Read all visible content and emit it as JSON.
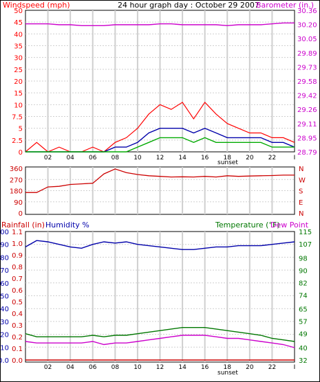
{
  "colors": {
    "wind": "#ff0000",
    "wind_avg": "#0000aa",
    "wind_low": "#00aa00",
    "barometer": "#cc00cc",
    "direction": "#cc0000",
    "humidity": "#0000aa",
    "temperature": "#007700",
    "dewpoint": "#cc00cc",
    "rainfall": "#cc0000",
    "grid": "#cfcfcf",
    "text_black": "#000000"
  },
  "panel1": {
    "title": "24 hour graph day : October 29 2007",
    "left_label": "Windspeed (mph)",
    "right_label": "Barometer (in.)",
    "sunset_label": "sunset"
  },
  "panel2": {
    "dir_letters": [
      "N",
      "W",
      "S",
      "E",
      "N"
    ]
  },
  "panel3": {
    "rain_label": "Rainfall (in)",
    "humidity_label": "Humidity %",
    "temperature_label": "Temperature (°F)",
    "dewpoint_label": "Dew Point",
    "sunset_label": "sunset"
  },
  "chart_data": [
    {
      "type": "line",
      "title": "24 hour graph day : October 29 2007",
      "x_ticks": [
        "02",
        "04",
        "06",
        "08",
        "10",
        "12",
        "14",
        "16",
        "18",
        "20",
        "22",
        "I"
      ],
      "y_left_label": "Windspeed (mph)",
      "y_left_ticks": [
        "0",
        "2.5",
        "5",
        "7.5",
        "10",
        "15",
        "20",
        "25",
        "30",
        "35",
        "40",
        "45",
        "50"
      ],
      "y_left_lim": [
        0,
        50
      ],
      "y_right_label": "Barometer (in.)",
      "y_right_ticks": [
        "28.79",
        "28.95",
        "29.11",
        "29.26",
        "29.42",
        "29.58",
        "29.73",
        "29.89",
        "30.05",
        "30.20",
        "30.36"
      ],
      "y_right_lim": [
        28.79,
        30.36
      ],
      "x_hours": [
        0,
        1,
        2,
        3,
        4,
        5,
        6,
        7,
        8,
        9,
        10,
        11,
        12,
        13,
        14,
        15,
        16,
        17,
        18,
        19,
        20,
        21,
        22,
        23,
        24
      ],
      "series": [
        {
          "name": "Windspeed (mph)",
          "axis": "left",
          "values": [
            0,
            2,
            0,
            1,
            0,
            0,
            1,
            0,
            2,
            3,
            5,
            8,
            10,
            9,
            11,
            7,
            11,
            8,
            6,
            5,
            4,
            4,
            3,
            3,
            2
          ]
        },
        {
          "name": "",
          "axis": "left",
          "values": [
            0,
            0,
            0,
            0,
            0,
            0,
            0,
            0,
            1,
            1,
            2,
            4,
            5,
            5,
            5,
            4,
            5,
            4,
            3,
            3,
            3,
            3,
            2,
            2,
            1
          ]
        },
        {
          "name": "",
          "axis": "left",
          "values": [
            0,
            0,
            0,
            0,
            0,
            0,
            0,
            0,
            0,
            0,
            1,
            2,
            3,
            3,
            3,
            2,
            3,
            2,
            2,
            2,
            2,
            2,
            1,
            1,
            1
          ]
        },
        {
          "name": "Barometer (in.)",
          "axis": "right",
          "values": [
            30.21,
            30.21,
            30.21,
            30.2,
            30.2,
            30.19,
            30.19,
            30.19,
            30.2,
            30.2,
            30.2,
            30.2,
            30.21,
            30.21,
            30.2,
            30.2,
            30.2,
            30.2,
            30.19,
            30.2,
            30.2,
            30.2,
            30.21,
            30.22,
            30.22
          ]
        }
      ]
    },
    {
      "type": "line",
      "y_ticks": [
        "0",
        "90",
        "180",
        "270",
        "360"
      ],
      "y_lim": [
        0,
        360
      ],
      "y_right_labels": [
        "N",
        "W",
        "S",
        "E",
        "N"
      ],
      "x_hours": [
        0,
        1,
        2,
        3,
        4,
        5,
        6,
        7,
        8,
        9,
        10,
        11,
        12,
        13,
        14,
        15,
        16,
        17,
        18,
        19,
        20,
        21,
        22,
        23,
        24
      ],
      "series": [
        {
          "name": "Wind direction",
          "values": [
            165,
            165,
            210,
            215,
            230,
            235,
            240,
            315,
            355,
            325,
            310,
            300,
            295,
            290,
            292,
            290,
            295,
            290,
            300,
            295,
            298,
            300,
            302,
            305,
            305
          ]
        }
      ]
    },
    {
      "type": "line",
      "x_ticks": [
        "02",
        "04",
        "06",
        "08",
        "10",
        "12",
        "14",
        "16",
        "18",
        "20",
        "22",
        "I"
      ],
      "y_left_ticks": [
        "0.0",
        "10",
        "20",
        "30",
        "40",
        "50",
        "60",
        "70",
        "80",
        "90",
        "100"
      ],
      "y_left_lim": [
        0,
        100
      ],
      "y_rain_ticks": [
        "0.0",
        "0.1",
        "0.2",
        "0.3",
        "0.4",
        "0.5",
        "0.6",
        "0.7",
        "0.8",
        "0.9",
        "1.0",
        "1.1"
      ],
      "y_right_ticks": [
        "32",
        "40",
        "49",
        "57",
        "65",
        "74",
        "82",
        "90",
        "98",
        "107",
        "115"
      ],
      "y_right_lim": [
        32,
        115
      ],
      "x_hours": [
        0,
        1,
        2,
        3,
        4,
        5,
        6,
        7,
        8,
        9,
        10,
        11,
        12,
        13,
        14,
        15,
        16,
        17,
        18,
        19,
        20,
        21,
        22,
        23,
        24
      ],
      "series": [
        {
          "name": "Humidity %",
          "axis": "humidity",
          "values": [
            88,
            93,
            92,
            90,
            88,
            87,
            90,
            92,
            91,
            92,
            90,
            89,
            88,
            87,
            86,
            86,
            87,
            88,
            88,
            89,
            89,
            89,
            90,
            91,
            92
          ]
        },
        {
          "name": "Temperature (°F)",
          "axis": "temperature",
          "values": [
            49,
            47,
            47,
            47,
            47,
            47,
            48,
            47,
            48,
            48,
            49,
            50,
            51,
            52,
            53,
            53,
            53,
            52,
            51,
            50,
            49,
            48,
            46,
            45,
            44
          ]
        },
        {
          "name": "Dew Point",
          "axis": "temperature",
          "values": [
            44,
            43,
            43,
            43,
            43,
            43,
            44,
            42,
            43,
            43,
            44,
            45,
            46,
            47,
            48,
            48,
            48,
            47,
            46,
            46,
            45,
            44,
            43,
            42,
            40
          ]
        },
        {
          "name": "Rainfall (in)",
          "axis": "rain",
          "values": [
            0,
            0,
            0,
            0,
            0,
            0,
            0,
            0,
            0,
            0,
            0,
            0,
            0,
            0,
            0,
            0,
            0,
            0,
            0,
            0,
            0,
            0,
            0,
            0,
            0
          ]
        }
      ]
    }
  ]
}
